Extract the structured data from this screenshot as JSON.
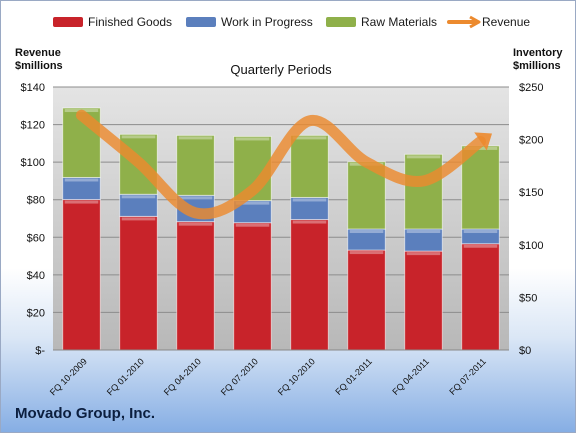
{
  "chart_data": {
    "type": "bar",
    "stacked": true,
    "title": "Quarterly Periods",
    "categories": [
      "FQ 10-2009",
      "FQ 01-2010",
      "FQ 04-2010",
      "FQ 07-2010",
      "FQ 10-2010",
      "FQ 01-2011",
      "FQ 04-2011",
      "FQ 07-2011"
    ],
    "series": [
      {
        "name": "Finished Goods",
        "axis": "right",
        "color": "#c8232a",
        "values": [
          143,
          127,
          122,
          121,
          124,
          95,
          94,
          101
        ]
      },
      {
        "name": "Work in Progress",
        "axis": "right",
        "color": "#5b7fbd",
        "values": [
          21,
          21,
          25,
          21,
          21,
          20,
          21,
          14
        ]
      },
      {
        "name": "Raw Materials",
        "axis": "right",
        "color": "#8fb04a",
        "values": [
          66,
          57,
          57,
          61,
          59,
          64,
          71,
          79
        ]
      },
      {
        "name": "Revenue",
        "type": "line",
        "axis": "left",
        "color": "#ec8a2e",
        "values": [
          125,
          100,
          73,
          85,
          122,
          100,
          90,
          111
        ]
      }
    ],
    "ylabel_left": "Revenue\n$millions",
    "ylabel_right": "Inventory\n$millions",
    "yleft_ticks": [
      "$-",
      "$20",
      "$40",
      "$60",
      "$80",
      "$100",
      "$120",
      "$140"
    ],
    "yright_ticks": [
      "$0",
      "$50",
      "$100",
      "$150",
      "$200",
      "$250"
    ],
    "ylim_left": [
      0,
      140
    ],
    "ylim_right": [
      0,
      250
    ],
    "legend_position": "top",
    "grid": true
  },
  "company": "Movado Group, Inc."
}
